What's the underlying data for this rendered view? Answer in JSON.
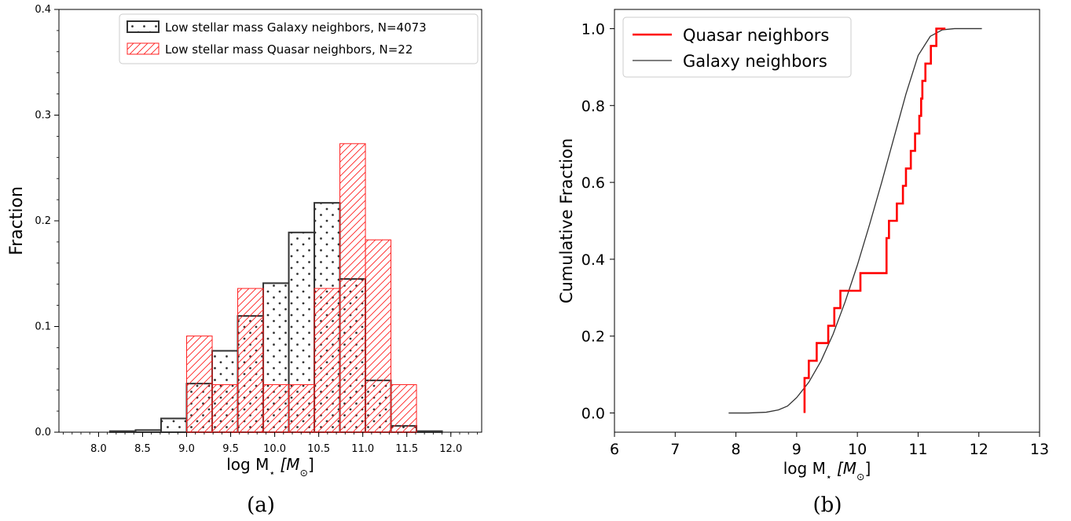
{
  "colors": {
    "galaxy": "#333333",
    "quasar": "#ff2020",
    "quasar_cdf": "#ff0000"
  },
  "chart_data": [
    {
      "type": "bar",
      "panel": "(a)",
      "xlabel_main": "log M",
      "xlabel_sub": "⋆",
      "xlabel_unit": "[M",
      "xlabel_unit_sub": "⊙",
      "xlabel_close": "]",
      "ylabel": "Fraction",
      "xlim": [
        7.55,
        12.35
      ],
      "ylim": [
        0,
        0.4
      ],
      "xticks": [
        8.0,
        8.5,
        9.0,
        9.5,
        10.0,
        10.5,
        11.0,
        11.5,
        12.0
      ],
      "xtick_labels": [
        "8.0",
        "8.5",
        "9.0",
        "9.5",
        "10.0",
        "10.5",
        "11.0",
        "11.5",
        "12.0"
      ],
      "yticks": [
        0.0,
        0.1,
        0.2,
        0.3,
        0.4
      ],
      "ytick_labels": [
        "0.0",
        "0.1",
        "0.2",
        "0.3",
        "0.4"
      ],
      "legend_position": "top-right",
      "bin_width": 0.29,
      "series": [
        {
          "name": "Low stellar mass Galaxy neighbors, N=4073",
          "hatch": "dots",
          "bin_left": [
            7.84,
            8.13,
            8.42,
            8.71,
            9.0,
            9.29,
            9.58,
            9.87,
            10.16,
            10.45,
            10.74,
            11.03,
            11.32,
            11.61,
            11.9
          ],
          "values": [
            0.0,
            0.001,
            0.002,
            0.013,
            0.046,
            0.077,
            0.11,
            0.141,
            0.189,
            0.217,
            0.145,
            0.049,
            0.006,
            0.001,
            0.0
          ]
        },
        {
          "name": "Low stellar mass Quasar neighbors, N=22",
          "hatch": "diagonal",
          "bin_left": [
            9.0,
            9.29,
            9.58,
            9.87,
            10.16,
            10.45,
            10.74,
            11.03,
            11.32
          ],
          "values": [
            0.091,
            0.045,
            0.136,
            0.045,
            0.045,
            0.136,
            0.273,
            0.182,
            0.045
          ]
        }
      ]
    },
    {
      "type": "line",
      "panel": "(b)",
      "xlabel_main": "log M",
      "xlabel_sub": "⋆",
      "xlabel_unit": "[M",
      "xlabel_unit_sub": "⊙",
      "xlabel_close": "]",
      "ylabel": "Cumulative Fraction",
      "xlim": [
        6,
        13
      ],
      "ylim": [
        -0.05,
        1.05
      ],
      "xticks": [
        6,
        7,
        8,
        9,
        10,
        11,
        12,
        13
      ],
      "xtick_labels": [
        "6",
        "7",
        "8",
        "9",
        "10",
        "11",
        "12",
        "13"
      ],
      "yticks": [
        0.0,
        0.2,
        0.4,
        0.6,
        0.8,
        1.0
      ],
      "ytick_labels": [
        "0.0",
        "0.2",
        "0.4",
        "0.6",
        "0.8",
        "1.0"
      ],
      "legend_position": "top-left",
      "series": [
        {
          "name": "Quasar neighbors",
          "style": "step",
          "x": [
            9.13,
            9.2,
            9.33,
            9.52,
            9.62,
            9.72,
            9.75,
            10.05,
            10.48,
            10.52,
            10.65,
            10.75,
            10.8,
            10.88,
            10.95,
            11.02,
            11.05,
            11.07,
            11.12,
            11.21,
            11.3,
            11.45
          ],
          "y": [
            0.091,
            0.136,
            0.182,
            0.227,
            0.273,
            0.318,
            0.318,
            0.364,
            0.455,
            0.5,
            0.545,
            0.591,
            0.636,
            0.682,
            0.727,
            0.773,
            0.818,
            0.864,
            0.909,
            0.955,
            1.0,
            1.0
          ]
        },
        {
          "name": "Galaxy neighbors",
          "style": "line",
          "x": [
            7.88,
            8.2,
            8.5,
            8.7,
            8.85,
            9.0,
            9.2,
            9.4,
            9.6,
            9.8,
            10.0,
            10.2,
            10.4,
            10.6,
            10.8,
            11.0,
            11.2,
            11.4,
            11.6,
            12.05
          ],
          "y": [
            0.0,
            0.0,
            0.002,
            0.008,
            0.018,
            0.04,
            0.08,
            0.135,
            0.205,
            0.29,
            0.385,
            0.49,
            0.6,
            0.715,
            0.83,
            0.93,
            0.98,
            0.997,
            1.0,
            1.0
          ]
        }
      ]
    }
  ]
}
